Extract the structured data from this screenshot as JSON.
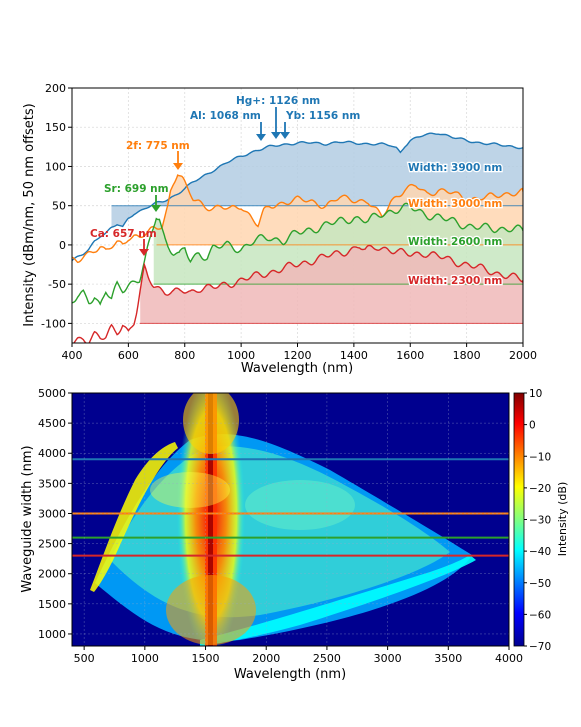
{
  "chart_data": [
    {
      "type": "area",
      "xlabel": "Wavelength (nm)",
      "ylabel": "Intensity (dBm/nm, 50 nm offsets)",
      "xlim": [
        400,
        2000
      ],
      "ylim": [
        -125,
        200
      ],
      "xticks": [
        400,
        600,
        800,
        1000,
        1200,
        1400,
        1600,
        1800,
        2000
      ],
      "yticks": [
        -100,
        -50,
        0,
        50,
        100,
        150,
        200
      ],
      "grid": true,
      "series": [
        {
          "name": "Width: 3900 nm",
          "color": "#1f77b4",
          "fill": "#b3cde3",
          "baseline": 50,
          "x": [
            400,
            420,
            440,
            460,
            480,
            500,
            520,
            540,
            560,
            580,
            600,
            620,
            640,
            660,
            680,
            700,
            720,
            740,
            760,
            780,
            800,
            830,
            860,
            900,
            950,
            1000,
            1050,
            1100,
            1150,
            1200,
            1250,
            1300,
            1350,
            1400,
            1450,
            1500,
            1530,
            1550,
            1565,
            1580,
            1600,
            1650,
            1700,
            1750,
            1800,
            1850,
            1900,
            1950,
            2000
          ],
          "y": [
            -20,
            -16,
            -12,
            -6,
            5,
            12,
            15,
            22,
            26,
            22,
            34,
            40,
            43,
            47,
            50,
            53,
            55,
            58,
            62,
            67,
            72,
            80,
            86,
            95,
            105,
            113,
            120,
            125,
            128,
            130,
            130,
            129,
            131,
            130,
            129,
            128,
            127,
            124,
            118,
            126,
            133,
            140,
            143,
            137,
            133,
            130,
            128,
            126,
            124
          ]
        },
        {
          "name": "Width: 3000 nm",
          "color": "#ff7f0e",
          "fill": "#ffd6b0",
          "baseline": 0,
          "x": [
            400,
            420,
            440,
            460,
            480,
            500,
            520,
            540,
            560,
            580,
            600,
            620,
            640,
            660,
            680,
            700,
            720,
            740,
            750,
            760,
            775,
            790,
            810,
            830,
            850,
            870,
            900,
            930,
            960,
            1000,
            1030,
            1060,
            1080,
            1100,
            1130,
            1160,
            1200,
            1250,
            1300,
            1350,
            1400,
            1450,
            1500,
            1530,
            1550,
            1580,
            1620,
            1660,
            1700,
            1750,
            1800,
            1850,
            1900,
            1950,
            2000
          ],
          "y": [
            -20,
            -22,
            -16,
            -10,
            -5,
            -2,
            -8,
            -3,
            2,
            0,
            10,
            12,
            10,
            14,
            18,
            20,
            25,
            50,
            70,
            80,
            92,
            85,
            70,
            58,
            55,
            50,
            47,
            48,
            45,
            50,
            38,
            25,
            42,
            48,
            52,
            55,
            58,
            55,
            50,
            60,
            58,
            55,
            35,
            55,
            62,
            70,
            75,
            65,
            70,
            66,
            58,
            60,
            62,
            66,
            68
          ]
        },
        {
          "name": "Width: 2600 nm",
          "color": "#2ca02c",
          "fill": "#c7e6c0",
          "baseline": -50,
          "x": [
            400,
            420,
            440,
            460,
            480,
            500,
            520,
            540,
            560,
            580,
            600,
            620,
            640,
            660,
            680,
            690,
            699,
            710,
            720,
            730,
            740,
            760,
            780,
            800,
            820,
            850,
            880,
            900,
            950,
            1000,
            1050,
            1100,
            1150,
            1200,
            1250,
            1300,
            1350,
            1400,
            1450,
            1500,
            1550,
            1600,
            1650,
            1700,
            1750,
            1800,
            1850,
            1900,
            1950,
            2000
          ],
          "y": [
            -75,
            -65,
            -60,
            -70,
            -65,
            -80,
            -60,
            -70,
            -50,
            -55,
            -50,
            -48,
            -45,
            -20,
            10,
            25,
            38,
            35,
            20,
            8,
            0,
            -10,
            -15,
            -5,
            -20,
            -10,
            -15,
            -5,
            0,
            -5,
            5,
            10,
            5,
            15,
            20,
            25,
            30,
            35,
            30,
            40,
            45,
            48,
            40,
            35,
            30,
            25,
            22,
            20,
            22,
            18
          ]
        },
        {
          "name": "Width: 2300 nm",
          "color": "#d62728",
          "fill": "#f0b8b8",
          "baseline": -100,
          "x": [
            400,
            420,
            440,
            460,
            480,
            500,
            520,
            540,
            560,
            580,
            600,
            620,
            630,
            645,
            657,
            670,
            690,
            710,
            730,
            760,
            790,
            820,
            850,
            900,
            950,
            1000,
            1050,
            1100,
            1150,
            1200,
            1250,
            1300,
            1350,
            1400,
            1420,
            1440,
            1480,
            1520,
            1560,
            1600,
            1650,
            1700,
            1750,
            1800,
            1850,
            1900,
            1950,
            2000
          ],
          "y": [
            -125,
            -120,
            -118,
            -122,
            -115,
            -120,
            -118,
            -105,
            -110,
            -100,
            -112,
            -100,
            -85,
            -55,
            -30,
            -40,
            -50,
            -55,
            -60,
            -62,
            -58,
            -60,
            -55,
            -55,
            -50,
            -45,
            -40,
            -35,
            -30,
            -25,
            -20,
            -15,
            -10,
            -5,
            -2,
            -8,
            -2,
            -5,
            -10,
            -12,
            -10,
            -15,
            -20,
            -25,
            -30,
            -35,
            -40,
            -45
          ]
        }
      ],
      "annotations": [
        {
          "text": "Hg+: 1126 nm",
          "x": 1126,
          "color": "#1f77b4"
        },
        {
          "text": "Al: 1068 nm",
          "x": 1068,
          "color": "#1f77b4"
        },
        {
          "text": "Yb: 1156 nm",
          "x": 1156,
          "color": "#1f77b4"
        },
        {
          "text": "2f: 775 nm",
          "x": 775,
          "color": "#ff7f0e"
        },
        {
          "text": "Sr: 699 nm",
          "x": 699,
          "color": "#2ca02c"
        },
        {
          "text": "Ca: 657 nm",
          "x": 657,
          "color": "#d62728"
        }
      ]
    },
    {
      "type": "heatmap",
      "xlabel": "Wavelength (nm)",
      "ylabel": "Waveguide width (nm)",
      "xlim": [
        400,
        4000
      ],
      "ylim": [
        800,
        5000
      ],
      "xticks": [
        500,
        1000,
        1500,
        2000,
        2500,
        3000,
        3500,
        4000
      ],
      "yticks": [
        1000,
        1500,
        2000,
        2500,
        3000,
        3500,
        4000,
        4500,
        5000
      ],
      "colorbar": {
        "label": "Intensity (dB)",
        "range": [
          -70,
          10
        ],
        "ticks": [
          10,
          0,
          -10,
          -20,
          -30,
          -40,
          -50,
          -60,
          -70
        ],
        "colormap": "jet"
      },
      "markers": [
        {
          "width": 3900,
          "color": "#1f77b4"
        },
        {
          "width": 3000,
          "color": "#ff7f0e"
        },
        {
          "width": 2600,
          "color": "#2ca02c"
        },
        {
          "width": 2300,
          "color": "#d62728"
        }
      ]
    }
  ]
}
